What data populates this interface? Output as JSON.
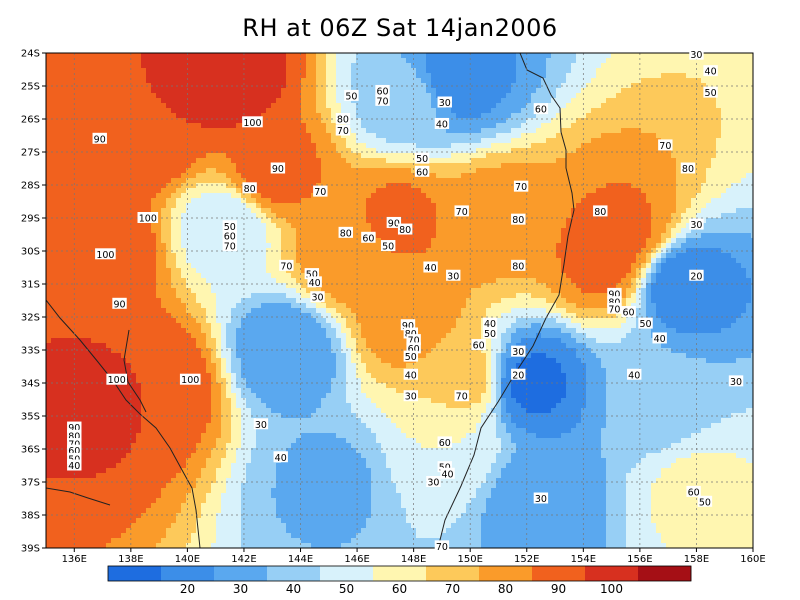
{
  "title": "RH at 06Z Sat 14jan2006",
  "map": {
    "lon_labels": [
      "136E",
      "138E",
      "140E",
      "142E",
      "144E",
      "146E",
      "148E",
      "150E",
      "152E",
      "154E",
      "156E",
      "158E",
      "160E"
    ],
    "lat_labels": [
      "24S",
      "25S",
      "26S",
      "27S",
      "28S",
      "29S",
      "30S",
      "31S",
      "32S",
      "33S",
      "34S",
      "35S",
      "36S",
      "37S",
      "38S",
      "39S"
    ],
    "lon_range": [
      135,
      160
    ],
    "lat_range": [
      -39,
      -24
    ],
    "gridlines": true,
    "contour_labels": [
      {
        "lon": 158.0,
        "lat": -24.05,
        "text": "30"
      },
      {
        "lon": 158.5,
        "lat": -24.55,
        "text": "40"
      },
      {
        "lon": 158.5,
        "lat": -25.2,
        "text": "50"
      },
      {
        "lon": 152.5,
        "lat": -25.7,
        "text": "60"
      },
      {
        "lon": 146.9,
        "lat": -25.15,
        "text": "60"
      },
      {
        "lon": 146.9,
        "lat": -25.45,
        "text": "70"
      },
      {
        "lon": 145.8,
        "lat": -25.3,
        "text": "50"
      },
      {
        "lon": 149.1,
        "lat": -25.5,
        "text": "30"
      },
      {
        "lon": 149.0,
        "lat": -26.15,
        "text": "40"
      },
      {
        "lon": 145.5,
        "lat": -26.0,
        "text": "80"
      },
      {
        "lon": 145.5,
        "lat": -26.35,
        "text": "70"
      },
      {
        "lon": 142.3,
        "lat": -26.1,
        "text": "100"
      },
      {
        "lon": 136.9,
        "lat": -26.6,
        "text": "90"
      },
      {
        "lon": 148.3,
        "lat": -27.2,
        "text": "50"
      },
      {
        "lon": 148.3,
        "lat": -27.6,
        "text": "60"
      },
      {
        "lon": 156.9,
        "lat": -26.8,
        "text": "70"
      },
      {
        "lon": 157.7,
        "lat": -27.5,
        "text": "80"
      },
      {
        "lon": 143.2,
        "lat": -27.5,
        "text": "90"
      },
      {
        "lon": 142.2,
        "lat": -28.1,
        "text": "80"
      },
      {
        "lon": 144.7,
        "lat": -28.2,
        "text": "70"
      },
      {
        "lon": 151.8,
        "lat": -28.05,
        "text": "70"
      },
      {
        "lon": 154.6,
        "lat": -28.8,
        "text": "80"
      },
      {
        "lon": 149.7,
        "lat": -28.8,
        "text": "70"
      },
      {
        "lon": 151.7,
        "lat": -29.05,
        "text": "80"
      },
      {
        "lon": 158.0,
        "lat": -29.2,
        "text": "30"
      },
      {
        "lon": 138.6,
        "lat": -29.0,
        "text": "100"
      },
      {
        "lon": 141.5,
        "lat": -29.25,
        "text": "50"
      },
      {
        "lon": 141.5,
        "lat": -29.55,
        "text": "60"
      },
      {
        "lon": 141.5,
        "lat": -29.85,
        "text": "70"
      },
      {
        "lon": 147.3,
        "lat": -29.15,
        "text": "90"
      },
      {
        "lon": 147.7,
        "lat": -29.35,
        "text": "80"
      },
      {
        "lon": 145.6,
        "lat": -29.45,
        "text": "80"
      },
      {
        "lon": 146.4,
        "lat": -29.6,
        "text": "60"
      },
      {
        "lon": 147.1,
        "lat": -29.85,
        "text": "50"
      },
      {
        "lon": 137.1,
        "lat": -30.1,
        "text": "100"
      },
      {
        "lon": 151.7,
        "lat": -30.45,
        "text": "80"
      },
      {
        "lon": 148.6,
        "lat": -30.5,
        "text": "40"
      },
      {
        "lon": 149.4,
        "lat": -30.75,
        "text": "30"
      },
      {
        "lon": 143.5,
        "lat": -30.45,
        "text": "70"
      },
      {
        "lon": 144.4,
        "lat": -30.7,
        "text": "50"
      },
      {
        "lon": 144.5,
        "lat": -30.95,
        "text": "40"
      },
      {
        "lon": 158.0,
        "lat": -30.75,
        "text": "20"
      },
      {
        "lon": 144.6,
        "lat": -31.4,
        "text": "30"
      },
      {
        "lon": 155.1,
        "lat": -31.3,
        "text": "90"
      },
      {
        "lon": 155.1,
        "lat": -31.55,
        "text": "80"
      },
      {
        "lon": 155.1,
        "lat": -31.75,
        "text": "70"
      },
      {
        "lon": 155.6,
        "lat": -31.85,
        "text": "60"
      },
      {
        "lon": 156.2,
        "lat": -32.2,
        "text": "50"
      },
      {
        "lon": 156.7,
        "lat": -32.65,
        "text": "40"
      },
      {
        "lon": 137.6,
        "lat": -31.6,
        "text": "90"
      },
      {
        "lon": 147.8,
        "lat": -32.25,
        "text": "90"
      },
      {
        "lon": 147.9,
        "lat": -32.5,
        "text": "80"
      },
      {
        "lon": 148.0,
        "lat": -32.7,
        "text": "70"
      },
      {
        "lon": 148.0,
        "lat": -32.95,
        "text": "60"
      },
      {
        "lon": 147.9,
        "lat": -33.2,
        "text": "50"
      },
      {
        "lon": 150.7,
        "lat": -32.2,
        "text": "40"
      },
      {
        "lon": 150.7,
        "lat": -32.5,
        "text": "50"
      },
      {
        "lon": 150.3,
        "lat": -32.85,
        "text": "60"
      },
      {
        "lon": 151.7,
        "lat": -33.05,
        "text": "30"
      },
      {
        "lon": 151.7,
        "lat": -33.75,
        "text": "20"
      },
      {
        "lon": 147.9,
        "lat": -33.75,
        "text": "40"
      },
      {
        "lon": 137.5,
        "lat": -33.9,
        "text": "100"
      },
      {
        "lon": 140.1,
        "lat": -33.9,
        "text": "100"
      },
      {
        "lon": 155.8,
        "lat": -33.75,
        "text": "40"
      },
      {
        "lon": 159.4,
        "lat": -33.95,
        "text": "30"
      },
      {
        "lon": 149.7,
        "lat": -34.4,
        "text": "70"
      },
      {
        "lon": 147.9,
        "lat": -34.4,
        "text": "30"
      },
      {
        "lon": 142.6,
        "lat": -35.25,
        "text": "30"
      },
      {
        "lon": 136.0,
        "lat": -35.35,
        "text": "90"
      },
      {
        "lon": 136.0,
        "lat": -35.6,
        "text": "80"
      },
      {
        "lon": 136.0,
        "lat": -35.85,
        "text": "70"
      },
      {
        "lon": 136.0,
        "lat": -36.05,
        "text": "60"
      },
      {
        "lon": 136.0,
        "lat": -36.3,
        "text": "50"
      },
      {
        "lon": 136.0,
        "lat": -36.5,
        "text": "40"
      },
      {
        "lon": 149.1,
        "lat": -35.8,
        "text": "60"
      },
      {
        "lon": 143.3,
        "lat": -36.25,
        "text": "40"
      },
      {
        "lon": 149.1,
        "lat": -36.55,
        "text": "50"
      },
      {
        "lon": 149.2,
        "lat": -36.75,
        "text": "40"
      },
      {
        "lon": 148.7,
        "lat": -37.0,
        "text": "30"
      },
      {
        "lon": 157.9,
        "lat": -37.3,
        "text": "60"
      },
      {
        "lon": 158.3,
        "lat": -37.6,
        "text": "50"
      },
      {
        "lon": 152.5,
        "lat": -37.5,
        "text": "30"
      },
      {
        "lon": 149.0,
        "lat": -38.95,
        "text": "70"
      }
    ]
  },
  "colorbar": {
    "labels": [
      "20",
      "30",
      "40",
      "50",
      "60",
      "70",
      "80",
      "90",
      "100"
    ],
    "colors": [
      "#1e6de0",
      "#3c8ee8",
      "#5aa8ef",
      "#97cff5",
      "#d8f2fb",
      "#fff6b0",
      "#fdc95a",
      "#fa9b2a",
      "#f1611e",
      "#d7301f",
      "#a50f15"
    ]
  },
  "chart_data": {
    "type": "heatmap",
    "title": "RH at 06Z Sat 14jan2006",
    "variable": "RH",
    "x_range": [
      135,
      160
    ],
    "y_range": [
      -39,
      -24
    ],
    "levels": [
      20,
      30,
      40,
      50,
      60,
      70,
      80,
      90,
      100
    ],
    "centers": [
      {
        "lon": 138.5,
        "lat": -26.5,
        "value": 100
      },
      {
        "lon": 141.5,
        "lat": -24.8,
        "value": 105
      },
      {
        "lon": 137.0,
        "lat": -30.0,
        "value": 100
      },
      {
        "lon": 139.0,
        "lat": -34.0,
        "value": 100
      },
      {
        "lon": 136.5,
        "lat": -34.6,
        "value": 102
      },
      {
        "lon": 143.0,
        "lat": -27.6,
        "value": 94
      },
      {
        "lon": 154.8,
        "lat": -30.2,
        "value": 94
      },
      {
        "lon": 155.5,
        "lat": -29.4,
        "value": 92
      },
      {
        "lon": 150.9,
        "lat": -29.0,
        "value": 86
      },
      {
        "lon": 147.5,
        "lat": -29.0,
        "value": 92
      },
      {
        "lon": 145.6,
        "lat": -30.2,
        "value": 86
      },
      {
        "lon": 147.8,
        "lat": -32.0,
        "value": 88
      },
      {
        "lon": 149.7,
        "lat": -33.8,
        "value": 75
      },
      {
        "lon": 149.2,
        "lat": -35.9,
        "value": 60
      },
      {
        "lon": 158.0,
        "lat": -37.3,
        "value": 62
      },
      {
        "lon": 141.4,
        "lat": -29.3,
        "value": 52
      },
      {
        "lon": 149.5,
        "lat": -24.8,
        "value": 25
      },
      {
        "lon": 157.5,
        "lat": -31.0,
        "value": 22
      },
      {
        "lon": 152.2,
        "lat": -34.0,
        "value": 18
      },
      {
        "lon": 143.5,
        "lat": -33.0,
        "value": 30
      },
      {
        "lon": 145.0,
        "lat": -37.0,
        "value": 38
      },
      {
        "lon": 152.5,
        "lat": -37.5,
        "value": 32
      },
      {
        "lon": 156.5,
        "lat": -34.5,
        "value": 42
      },
      {
        "lon": 147.7,
        "lat": -25.5,
        "value": 45
      }
    ]
  }
}
